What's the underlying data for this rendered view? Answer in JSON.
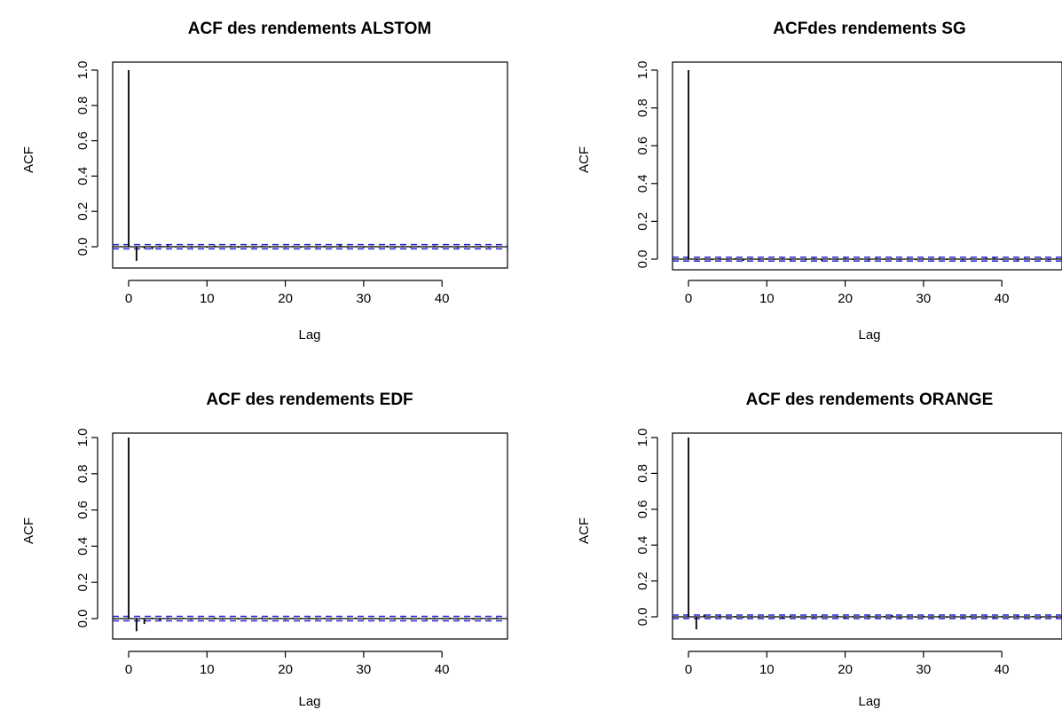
{
  "chart_data": [
    {
      "type": "bar",
      "title": "ACF des rendements ALSTOM",
      "xlabel": "Lag",
      "ylabel": "ACF",
      "xlim": [
        0,
        47
      ],
      "ylim": [
        -0.1,
        1.0
      ],
      "xticks": [
        0,
        10,
        20,
        30,
        40
      ],
      "yticks": [
        0.0,
        0.2,
        0.4,
        0.6,
        0.8,
        1.0
      ],
      "lags": [
        0,
        1,
        2,
        3,
        4,
        5,
        6,
        7,
        8,
        9,
        10,
        11,
        12,
        13,
        14,
        15,
        16,
        17,
        18,
        19,
        20,
        21,
        22,
        23,
        24,
        25,
        26,
        27,
        28,
        29,
        30,
        31,
        32,
        33,
        34,
        35,
        36,
        37,
        38,
        39,
        40,
        41,
        42,
        43,
        44,
        45,
        46,
        47
      ],
      "values": [
        1.0,
        -0.08,
        -0.01,
        -0.015,
        0.005,
        0.008,
        -0.004,
        0.006,
        -0.005,
        0.004,
        -0.006,
        0.007,
        -0.003,
        0.005,
        -0.006,
        0.004,
        -0.004,
        0.006,
        -0.005,
        0.003,
        -0.004,
        0.005,
        -0.006,
        0.004,
        -0.005,
        0.006,
        -0.004,
        0.009,
        -0.005,
        0.004,
        -0.006,
        0.005,
        -0.004,
        0.006,
        -0.005,
        0.004,
        -0.006,
        0.005,
        -0.004,
        0.006,
        -0.005,
        0.004,
        -0.006,
        0.005,
        -0.004,
        0.006,
        -0.005,
        0.004
      ],
      "conf_band": 0.012,
      "grid": false
    },
    {
      "type": "bar",
      "title": "ACFdes rendements SG",
      "xlabel": "Lag",
      "ylabel": "ACF",
      "xlim": [
        0,
        47
      ],
      "ylim": [
        -0.05,
        1.0
      ],
      "xticks": [
        0,
        10,
        20,
        30,
        40
      ],
      "yticks": [
        0.0,
        0.2,
        0.4,
        0.6,
        0.8,
        1.0
      ],
      "lags": [
        0,
        1,
        2,
        3,
        4,
        5,
        6,
        7,
        8,
        9,
        10,
        11,
        12,
        13,
        14,
        15,
        16,
        17,
        18,
        19,
        20,
        21,
        22,
        23,
        24,
        25,
        26,
        27,
        28,
        29,
        30,
        31,
        32,
        33,
        34,
        35,
        36,
        37,
        38,
        39,
        40,
        41,
        42,
        43,
        44,
        45,
        46,
        47
      ],
      "values": [
        1.0,
        -0.005,
        0.004,
        -0.006,
        0.005,
        -0.004,
        0.006,
        -0.009,
        0.004,
        -0.005,
        0.006,
        -0.004,
        0.005,
        -0.006,
        0.004,
        -0.005,
        0.006,
        -0.008,
        0.005,
        -0.004,
        0.006,
        -0.005,
        0.004,
        -0.006,
        0.005,
        -0.004,
        0.006,
        -0.005,
        0.004,
        -0.006,
        0.005,
        -0.004,
        0.006,
        -0.005,
        0.004,
        -0.006,
        0.005,
        -0.004,
        0.006,
        0.008,
        -0.005,
        0.004,
        -0.006,
        0.005,
        -0.004,
        0.006,
        -0.005,
        0.004
      ],
      "conf_band": 0.01,
      "grid": false
    },
    {
      "type": "bar",
      "title": "ACF des rendements EDF",
      "xlabel": "Lag",
      "ylabel": "ACF",
      "xlim": [
        0,
        47
      ],
      "ylim": [
        -0.1,
        1.0
      ],
      "xticks": [
        0,
        10,
        20,
        30,
        40
      ],
      "yticks": [
        0.0,
        0.2,
        0.4,
        0.6,
        0.8,
        1.0
      ],
      "lags": [
        0,
        1,
        2,
        3,
        4,
        5,
        6,
        7,
        8,
        9,
        10,
        11,
        12,
        13,
        14,
        15,
        16,
        17,
        18,
        19,
        20,
        21,
        22,
        23,
        24,
        25,
        26,
        27,
        28,
        29,
        30,
        31,
        32,
        33,
        34,
        35,
        36,
        37,
        38,
        39,
        40,
        41,
        42,
        43,
        44,
        45,
        46,
        47
      ],
      "values": [
        1.0,
        -0.07,
        -0.03,
        0.005,
        -0.01,
        0.006,
        -0.005,
        0.004,
        -0.006,
        0.005,
        -0.004,
        0.006,
        -0.005,
        0.004,
        -0.006,
        0.005,
        -0.004,
        0.006,
        -0.005,
        0.004,
        -0.006,
        0.005,
        -0.004,
        0.006,
        -0.005,
        0.004,
        -0.006,
        0.005,
        -0.004,
        0.006,
        -0.005,
        0.004,
        -0.006,
        0.005,
        -0.004,
        0.006,
        -0.005,
        0.004,
        -0.006,
        0.005,
        -0.004,
        0.006,
        -0.005,
        0.004,
        -0.006,
        0.005,
        -0.004,
        0.006
      ],
      "conf_band": 0.012,
      "grid": false
    },
    {
      "type": "bar",
      "title": "ACF des rendements ORANGE",
      "xlabel": "Lag",
      "ylabel": "ACF",
      "xlim": [
        0,
        47
      ],
      "ylim": [
        -0.08,
        1.0
      ],
      "xticks": [
        0,
        10,
        20,
        30,
        40
      ],
      "yticks": [
        0.0,
        0.2,
        0.4,
        0.6,
        0.8,
        1.0
      ],
      "lags": [
        0,
        1,
        2,
        3,
        4,
        5,
        6,
        7,
        8,
        9,
        10,
        11,
        12,
        13,
        14,
        15,
        16,
        17,
        18,
        19,
        20,
        21,
        22,
        23,
        24,
        25,
        26,
        27,
        28,
        29,
        30,
        31,
        32,
        33,
        34,
        35,
        36,
        37,
        38,
        39,
        40,
        41,
        42,
        43,
        44,
        45,
        46,
        47
      ],
      "values": [
        1.0,
        -0.07,
        0.012,
        -0.005,
        0.006,
        -0.004,
        0.005,
        -0.006,
        0.004,
        -0.005,
        0.006,
        -0.004,
        -0.008,
        0.005,
        -0.006,
        0.004,
        -0.005,
        0.006,
        -0.004,
        0.005,
        -0.006,
        0.004,
        -0.005,
        0.006,
        -0.004,
        0.005,
        0.01,
        -0.006,
        0.004,
        -0.005,
        0.006,
        -0.004,
        0.005,
        -0.006,
        0.004,
        -0.005,
        0.006,
        -0.004,
        0.005,
        -0.006,
        0.004,
        -0.005,
        0.006,
        -0.004,
        0.005,
        -0.006,
        0.004,
        -0.005
      ],
      "conf_band": 0.01,
      "grid": false
    }
  ]
}
